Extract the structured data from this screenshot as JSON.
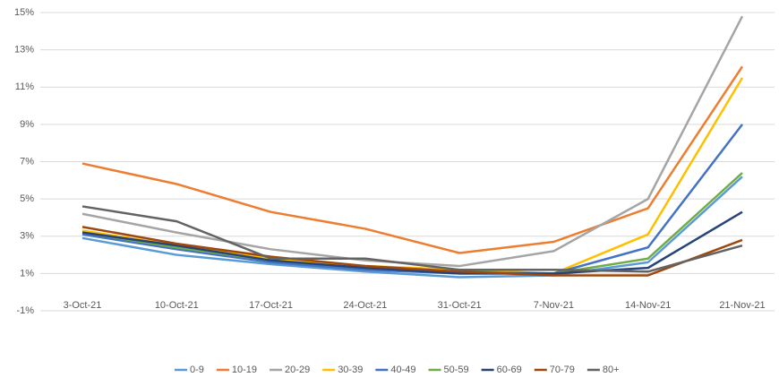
{
  "chart_data": {
    "type": "line",
    "categories": [
      "3-Oct-21",
      "10-Oct-21",
      "17-Oct-21",
      "24-Oct-21",
      "31-Oct-21",
      "7-Nov-21",
      "14-Nov-21",
      "21-Nov-21"
    ],
    "ylim": [
      -1,
      15
    ],
    "yticks": [
      {
        "value": -1,
        "label": "-1%"
      },
      {
        "value": 1,
        "label": "1%"
      },
      {
        "value": 3,
        "label": "3%"
      },
      {
        "value": 5,
        "label": "5%"
      },
      {
        "value": 7,
        "label": "7%"
      },
      {
        "value": 9,
        "label": "9%"
      },
      {
        "value": 11,
        "label": "11%"
      },
      {
        "value": 13,
        "label": "13%"
      },
      {
        "value": 15,
        "label": "15%"
      }
    ],
    "grid": true,
    "legend": "bottom",
    "series": [
      {
        "name": "0-9",
        "color": "#5b9bd5",
        "values": [
          2.9,
          2.0,
          1.5,
          1.1,
          0.8,
          0.9,
          1.6,
          6.2
        ]
      },
      {
        "name": "10-19",
        "color": "#ed7d31",
        "values": [
          6.9,
          5.8,
          4.3,
          3.4,
          2.1,
          2.7,
          4.5,
          12.1
        ]
      },
      {
        "name": "20-29",
        "color": "#a5a5a5",
        "values": [
          4.2,
          3.2,
          2.3,
          1.7,
          1.4,
          2.2,
          5.0,
          14.8
        ]
      },
      {
        "name": "30-39",
        "color": "#ffc000",
        "values": [
          3.3,
          2.5,
          1.8,
          1.4,
          1.2,
          1.0,
          3.1,
          11.5
        ]
      },
      {
        "name": "40-49",
        "color": "#4472c4",
        "values": [
          3.1,
          2.3,
          1.6,
          1.2,
          1.0,
          1.0,
          2.4,
          9.0
        ]
      },
      {
        "name": "50-59",
        "color": "#70ad47",
        "values": [
          3.2,
          2.4,
          1.7,
          1.3,
          1.1,
          1.0,
          1.8,
          6.4
        ]
      },
      {
        "name": "60-69",
        "color": "#264478",
        "values": [
          3.2,
          2.5,
          1.7,
          1.3,
          1.0,
          1.0,
          1.3,
          4.3
        ]
      },
      {
        "name": "70-79",
        "color": "#9e480e",
        "values": [
          3.5,
          2.6,
          1.9,
          1.4,
          1.1,
          0.9,
          0.9,
          2.8
        ]
      },
      {
        "name": "80+",
        "color": "#636363",
        "values": [
          4.6,
          3.8,
          1.8,
          1.8,
          1.2,
          1.2,
          1.1,
          2.5
        ]
      }
    ]
  }
}
